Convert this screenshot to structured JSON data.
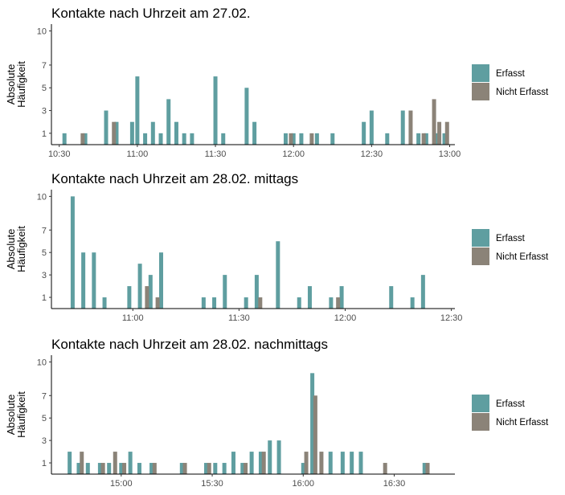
{
  "legend": {
    "items": [
      {
        "label": "Erfasst",
        "color": "#5f9ea0"
      },
      {
        "label": "Nicht Erfasst",
        "color": "#8b8378"
      }
    ]
  },
  "chart_data": [
    {
      "type": "bar",
      "title": "Kontakte nach Uhrzeit am 27.02.",
      "ylabel": "Absolute Häufigkeit",
      "xlabel": "",
      "ylim": [
        0,
        10.6
      ],
      "yticks": [
        1,
        3,
        5,
        7,
        10
      ],
      "xlim": [
        "10:27",
        "13:02"
      ],
      "xticks": [
        "10:30",
        "11:00",
        "11:30",
        "12:00",
        "12:30",
        "13:00"
      ],
      "grid": false,
      "legend_position": "right",
      "series": [
        {
          "name": "Erfasst",
          "points": [
            [
              "10:32",
              1
            ],
            [
              "10:40",
              1
            ],
            [
              "10:48",
              3
            ],
            [
              "10:52",
              2
            ],
            [
              "10:58",
              2
            ],
            [
              "11:00",
              6
            ],
            [
              "11:03",
              1
            ],
            [
              "11:06",
              2
            ],
            [
              "11:09",
              1
            ],
            [
              "11:12",
              4
            ],
            [
              "11:15",
              2
            ],
            [
              "11:18",
              1
            ],
            [
              "11:21",
              1
            ],
            [
              "11:30",
              6
            ],
            [
              "11:33",
              1
            ],
            [
              "11:42",
              5
            ],
            [
              "11:45",
              2
            ],
            [
              "11:57",
              1
            ],
            [
              "12:00",
              1
            ],
            [
              "12:03",
              1
            ],
            [
              "12:09",
              1
            ],
            [
              "12:15",
              1
            ],
            [
              "12:27",
              2
            ],
            [
              "12:30",
              3
            ],
            [
              "12:36",
              1
            ],
            [
              "12:42",
              3
            ],
            [
              "12:48",
              1
            ],
            [
              "12:51",
              1
            ],
            [
              "12:55",
              1
            ],
            [
              "12:58",
              1
            ]
          ]
        },
        {
          "name": "Nicht Erfasst",
          "points": [
            [
              "10:39",
              1
            ],
            [
              "10:51",
              2
            ],
            [
              "11:59",
              1
            ],
            [
              "12:07",
              1
            ],
            [
              "12:45",
              3
            ],
            [
              "12:50",
              1
            ],
            [
              "12:54",
              4
            ],
            [
              "12:56",
              2
            ],
            [
              "12:59",
              2
            ]
          ]
        }
      ]
    },
    {
      "type": "bar",
      "title": "Kontakte nach Uhrzeit am 28.02. mittags",
      "ylabel": "Absolute Häufigkeit",
      "xlabel": "",
      "ylim": [
        0,
        10.6
      ],
      "yticks": [
        1,
        3,
        5,
        7,
        10
      ],
      "xlim": [
        "10:37",
        "12:31"
      ],
      "xticks": [
        "11:00",
        "11:30",
        "12:00",
        "12:30"
      ],
      "grid": false,
      "legend_position": "right",
      "series": [
        {
          "name": "Erfasst",
          "points": [
            [
              "10:43",
              10
            ],
            [
              "10:46",
              5
            ],
            [
              "10:49",
              5
            ],
            [
              "10:52",
              1
            ],
            [
              "10:59",
              2
            ],
            [
              "11:02",
              4
            ],
            [
              "11:05",
              3
            ],
            [
              "11:08",
              5
            ],
            [
              "11:20",
              1
            ],
            [
              "11:23",
              1
            ],
            [
              "11:26",
              3
            ],
            [
              "11:32",
              1
            ],
            [
              "11:35",
              3
            ],
            [
              "11:41",
              6
            ],
            [
              "11:47",
              1
            ],
            [
              "11:50",
              2
            ],
            [
              "11:56",
              1
            ],
            [
              "11:59",
              2
            ],
            [
              "12:13",
              2
            ],
            [
              "12:19",
              1
            ],
            [
              "12:22",
              3
            ]
          ]
        },
        {
          "name": "Nicht Erfasst",
          "points": [
            [
              "11:04",
              2
            ],
            [
              "11:07",
              1
            ],
            [
              "11:36",
              1
            ],
            [
              "11:58",
              1
            ]
          ]
        }
      ]
    },
    {
      "type": "bar",
      "title": "Kontakte nach Uhrzeit am 28.02. nachmittags",
      "ylabel": "Absolute Häufigkeit",
      "xlabel": "",
      "ylim": [
        0,
        10.6
      ],
      "yticks": [
        1,
        3,
        5,
        7,
        10
      ],
      "xlim": [
        "14:37",
        "16:50"
      ],
      "xticks": [
        "15:00",
        "15:30",
        "16:00",
        "16:30"
      ],
      "grid": false,
      "legend_position": "right",
      "series": [
        {
          "name": "Erfasst",
          "points": [
            [
              "14:43",
              2
            ],
            [
              "14:46",
              1
            ],
            [
              "14:49",
              1
            ],
            [
              "14:53",
              1
            ],
            [
              "14:56",
              1
            ],
            [
              "15:00",
              1
            ],
            [
              "15:03",
              2
            ],
            [
              "15:06",
              1
            ],
            [
              "15:10",
              1
            ],
            [
              "15:20",
              1
            ],
            [
              "15:28",
              1
            ],
            [
              "15:31",
              1
            ],
            [
              "15:34",
              1
            ],
            [
              "15:37",
              2
            ],
            [
              "15:40",
              1
            ],
            [
              "15:43",
              2
            ],
            [
              "15:46",
              2
            ],
            [
              "15:49",
              3
            ],
            [
              "15:52",
              3
            ],
            [
              "16:00",
              1
            ],
            [
              "16:03",
              9
            ],
            [
              "16:09",
              2
            ],
            [
              "16:13",
              2
            ],
            [
              "16:16",
              2
            ],
            [
              "16:19",
              2
            ],
            [
              "16:40",
              1
            ]
          ]
        },
        {
          "name": "Nicht Erfasst",
          "points": [
            [
              "14:47",
              2
            ],
            [
              "14:54",
              1
            ],
            [
              "14:58",
              2
            ],
            [
              "15:01",
              1
            ],
            [
              "15:11",
              1
            ],
            [
              "15:21",
              1
            ],
            [
              "15:29",
              1
            ],
            [
              "15:41",
              1
            ],
            [
              "15:47",
              2
            ],
            [
              "16:01",
              2
            ],
            [
              "16:04",
              7
            ],
            [
              "16:06",
              2
            ],
            [
              "16:27",
              1
            ],
            [
              "16:41",
              1
            ]
          ]
        }
      ]
    }
  ]
}
